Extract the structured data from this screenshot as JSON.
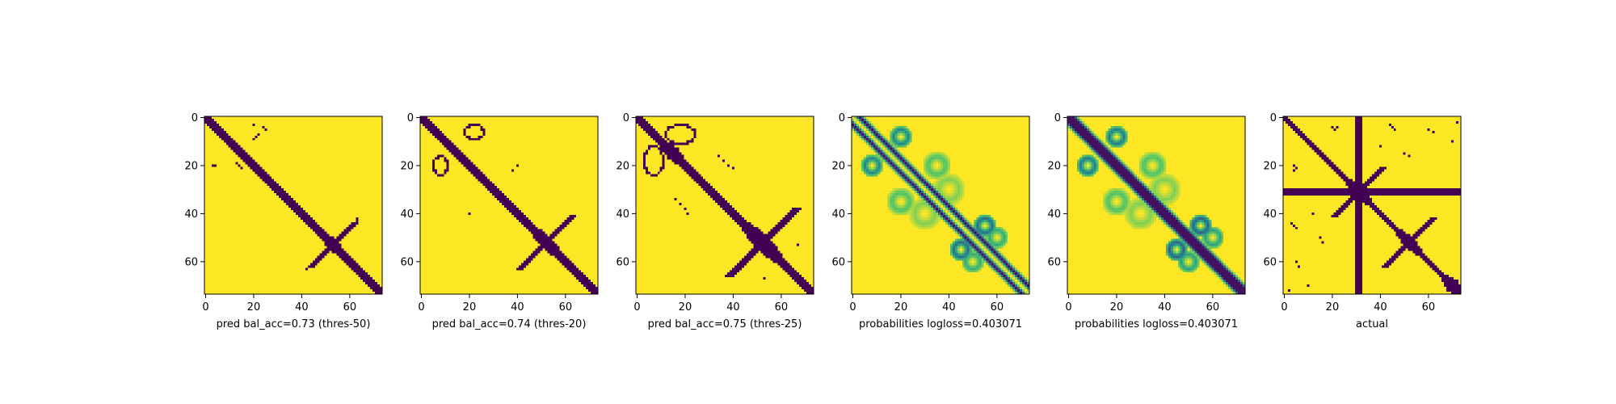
{
  "figure": {
    "panel_count": 6
  },
  "chart_data": [
    {
      "type": "heatmap",
      "title": "",
      "xlabel": "pred bal_acc=0.73 (thres-50)",
      "ylabel": "",
      "x_ticks": [
        0,
        20,
        40,
        60
      ],
      "y_ticks": [
        0,
        20,
        40,
        60
      ],
      "xlim": [
        -0.5,
        73.5
      ],
      "ylim": [
        73.5,
        -0.5
      ],
      "size": 74,
      "colormap": "viridis",
      "value_range": [
        0,
        1
      ],
      "grid": false,
      "legend": "none",
      "features": {
        "diag_half_width": 2,
        "diag_thickening": [
          {
            "center": 53,
            "extra": 1.5,
            "spread": 6
          }
        ],
        "crosses": [
          {
            "center": 53,
            "length": 9,
            "half_width": 1,
            "stroke": 1
          }
        ],
        "offdiag_points": [
          [
            24,
            4
          ],
          [
            25,
            5
          ],
          [
            22,
            7
          ],
          [
            21,
            8
          ],
          [
            20,
            9
          ],
          [
            20,
            3
          ],
          [
            3,
            20
          ],
          [
            4,
            20
          ],
          [
            13,
            19
          ],
          [
            14,
            20
          ],
          [
            15,
            21
          ]
        ],
        "cross_arms": [
          {
            "from": [
              45,
              61
            ],
            "to": [
              42,
              63
            ]
          },
          {
            "from": [
              62,
              45
            ],
            "to": [
              63,
              42
            ]
          }
        ]
      }
    },
    {
      "type": "heatmap",
      "title": "",
      "xlabel": "pred bal_acc=0.74 (thres-20)",
      "ylabel": "",
      "x_ticks": [
        0,
        20,
        40,
        60
      ],
      "y_ticks": [
        0,
        20,
        40,
        60
      ],
      "xlim": [
        -0.5,
        73.5
      ],
      "ylim": [
        73.5,
        -0.5
      ],
      "size": 74,
      "colormap": "viridis",
      "value_range": [
        0,
        1
      ],
      "grid": false,
      "legend": "none",
      "features": {
        "diag_half_width": 2,
        "diag_thickening": [
          {
            "center": 52,
            "extra": 2,
            "spread": 7
          }
        ],
        "crosses": [
          {
            "center": 52,
            "length": 11,
            "half_width": 1,
            "stroke": 1
          }
        ],
        "arcs": [
          {
            "cx": 22,
            "cy": 6,
            "rx": 4,
            "ry": 3
          },
          {
            "cx": 8,
            "cy": 20,
            "rx": 3,
            "ry": 4
          }
        ],
        "offdiag_points": [
          [
            40,
            20
          ],
          [
            20,
            40
          ],
          [
            38,
            22
          ]
        ]
      }
    },
    {
      "type": "heatmap",
      "title": "",
      "xlabel": "pred bal_acc=0.75 (thres-25)",
      "ylabel": "",
      "x_ticks": [
        0,
        20,
        40,
        60
      ],
      "y_ticks": [
        0,
        20,
        40,
        60
      ],
      "xlim": [
        -0.5,
        73.5
      ],
      "ylim": [
        73.5,
        -0.5
      ],
      "size": 74,
      "colormap": "viridis",
      "value_range": [
        0,
        1
      ],
      "grid": false,
      "legend": "none",
      "features": {
        "diag_half_width": 2.5,
        "diag_thickening": [
          {
            "center": 15,
            "extra": 1.5,
            "spread": 5
          },
          {
            "center": 52,
            "extra": 3,
            "spread": 8
          }
        ],
        "crosses": [
          {
            "center": 52,
            "length": 14,
            "half_width": 1.5,
            "stroke": 1.2
          }
        ],
        "arcs": [
          {
            "cx": 18,
            "cy": 7,
            "rx": 6,
            "ry": 4
          },
          {
            "cx": 7,
            "cy": 18,
            "rx": 4,
            "ry": 6
          }
        ],
        "offdiag_points": [
          [
            34,
            16
          ],
          [
            36,
            18
          ],
          [
            38,
            20
          ],
          [
            40,
            21
          ],
          [
            16,
            34
          ],
          [
            18,
            36
          ],
          [
            20,
            38
          ],
          [
            21,
            40
          ],
          [
            34,
            36
          ],
          [
            36,
            35
          ],
          [
            38,
            37
          ],
          [
            67,
            53
          ],
          [
            53,
            67
          ]
        ]
      }
    },
    {
      "type": "heatmap",
      "title": "",
      "xlabel": "probabilities logloss=0.403071",
      "ylabel": "",
      "x_ticks": [
        0,
        20,
        40,
        60
      ],
      "y_ticks": [
        0,
        20,
        40,
        60
      ],
      "xlim": [
        -0.5,
        73.5
      ],
      "ylim": [
        73.5,
        -0.5
      ],
      "size": 74,
      "colormap": "viridis",
      "value_range": [
        0,
        1
      ],
      "grid": false,
      "legend": "none",
      "features": {
        "diag_band_offsets": [
          -3,
          3
        ],
        "diag_band_width": 0.8,
        "continuous": true,
        "blobs": [
          {
            "cx": 20,
            "cy": 8,
            "r": 5,
            "intensity": 0.55
          },
          {
            "cx": 8,
            "cy": 20,
            "r": 5,
            "intensity": 0.55
          },
          {
            "cx": 35,
            "cy": 20,
            "r": 6,
            "intensity": 0.3
          },
          {
            "cx": 20,
            "cy": 35,
            "r": 6,
            "intensity": 0.3
          },
          {
            "cx": 55,
            "cy": 45,
            "r": 5,
            "intensity": 0.65
          },
          {
            "cx": 45,
            "cy": 55,
            "r": 5,
            "intensity": 0.65
          },
          {
            "cx": 30,
            "cy": 40,
            "r": 7,
            "intensity": 0.2
          },
          {
            "cx": 40,
            "cy": 30,
            "r": 7,
            "intensity": 0.2
          },
          {
            "cx": 50,
            "cy": 60,
            "r": 5,
            "intensity": 0.4
          },
          {
            "cx": 60,
            "cy": 50,
            "r": 5,
            "intensity": 0.4
          }
        ]
      }
    },
    {
      "type": "heatmap",
      "title": "",
      "xlabel": "probabilities logloss=0.403071",
      "ylabel": "",
      "x_ticks": [
        0,
        20,
        40,
        60
      ],
      "y_ticks": [
        0,
        20,
        40,
        60
      ],
      "xlim": [
        -0.5,
        73.5
      ],
      "ylim": [
        73.5,
        -0.5
      ],
      "size": 74,
      "colormap": "viridis",
      "value_range": [
        0,
        1
      ],
      "grid": false,
      "legend": "none",
      "features": {
        "diag_band_offsets": [
          0
        ],
        "diag_band_width": 2.8,
        "continuous": true,
        "blobs": [
          {
            "cx": 20,
            "cy": 8,
            "r": 5,
            "intensity": 0.6
          },
          {
            "cx": 8,
            "cy": 20,
            "r": 5,
            "intensity": 0.6
          },
          {
            "cx": 35,
            "cy": 20,
            "r": 6,
            "intensity": 0.3
          },
          {
            "cx": 20,
            "cy": 35,
            "r": 6,
            "intensity": 0.3
          },
          {
            "cx": 55,
            "cy": 45,
            "r": 5,
            "intensity": 0.7
          },
          {
            "cx": 45,
            "cy": 55,
            "r": 5,
            "intensity": 0.7
          },
          {
            "cx": 30,
            "cy": 40,
            "r": 7,
            "intensity": 0.2
          },
          {
            "cx": 40,
            "cy": 30,
            "r": 7,
            "intensity": 0.2
          },
          {
            "cx": 50,
            "cy": 60,
            "r": 5,
            "intensity": 0.45
          },
          {
            "cx": 60,
            "cy": 50,
            "r": 5,
            "intensity": 0.45
          }
        ]
      }
    },
    {
      "type": "heatmap",
      "title": "",
      "xlabel": "actual",
      "ylabel": "",
      "x_ticks": [
        0,
        20,
        40,
        60
      ],
      "y_ticks": [
        0,
        20,
        40,
        60
      ],
      "xlim": [
        -0.5,
        73.5
      ],
      "ylim": [
        73.5,
        -0.5
      ],
      "size": 74,
      "colormap": "viridis",
      "value_range": [
        0,
        1
      ],
      "grid": false,
      "legend": "none",
      "features": {
        "diag_half_width": 1.5,
        "diag_thickening": [
          {
            "center": 31,
            "extra": 2,
            "spread": 6
          },
          {
            "center": 52,
            "extra": 2,
            "spread": 6
          },
          {
            "center": 70,
            "extra": 3,
            "spread": 4
          }
        ],
        "crosses": [
          {
            "center": 31,
            "length": 10,
            "half_width": 1,
            "stroke": 1
          },
          {
            "center": 52,
            "length": 10,
            "half_width": 1,
            "stroke": 1
          }
        ],
        "full_lines": [
          {
            "orientation": "h",
            "at": 31,
            "half_width": 1
          },
          {
            "orientation": "v",
            "at": 31,
            "half_width": 1
          }
        ],
        "offdiag_points": [
          [
            20,
            4
          ],
          [
            21,
            5
          ],
          [
            22,
            4
          ],
          [
            4,
            20
          ],
          [
            5,
            21
          ],
          [
            4,
            22
          ],
          [
            44,
            3
          ],
          [
            45,
            4
          ],
          [
            46,
            5
          ],
          [
            3,
            44
          ],
          [
            4,
            45
          ],
          [
            5,
            46
          ],
          [
            50,
            15
          ],
          [
            52,
            16
          ],
          [
            15,
            50
          ],
          [
            16,
            52
          ],
          [
            60,
            5
          ],
          [
            62,
            6
          ],
          [
            5,
            60
          ],
          [
            6,
            62
          ],
          [
            40,
            12
          ],
          [
            12,
            40
          ],
          [
            70,
            10
          ],
          [
            10,
            70
          ],
          [
            72,
            2
          ],
          [
            2,
            72
          ]
        ]
      }
    }
  ]
}
